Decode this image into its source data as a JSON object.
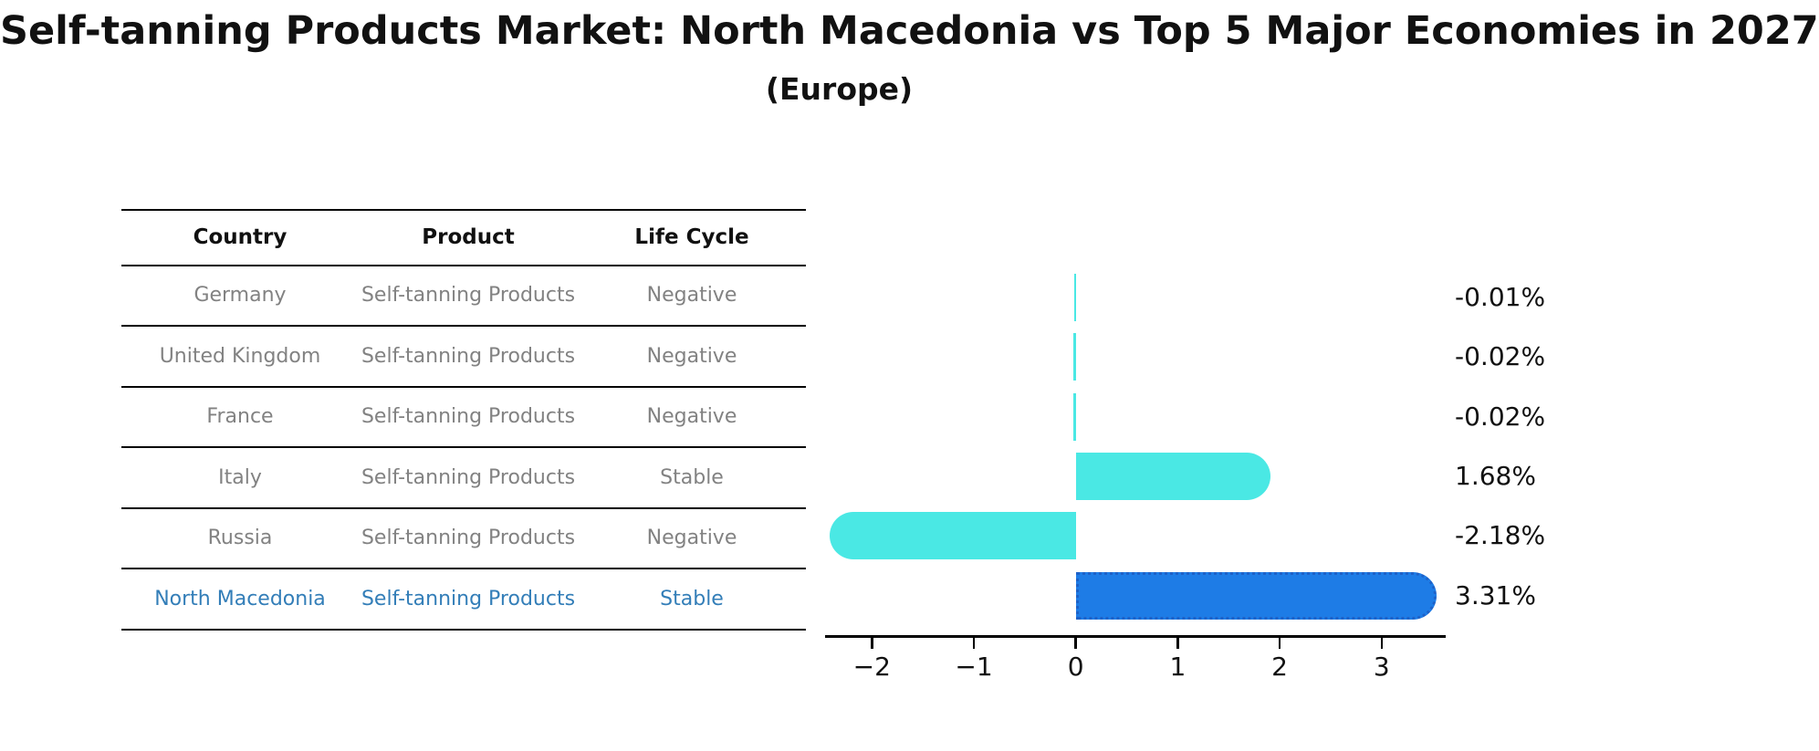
{
  "title": "Self-tanning Products Market: North Macedonia vs Top 5 Major Economies in 2027",
  "subtitle": "(Europe)",
  "table": {
    "headers": [
      "Country",
      "Product",
      "Life Cycle"
    ],
    "rows": [
      {
        "country": "Germany",
        "product": "Self-tanning Products",
        "life_cycle": "Negative"
      },
      {
        "country": "United Kingdom",
        "product": "Self-tanning Products",
        "life_cycle": "Negative"
      },
      {
        "country": "France",
        "product": "Self-tanning Products",
        "life_cycle": "Negative"
      },
      {
        "country": "Italy",
        "product": "Self-tanning Products",
        "life_cycle": "Stable"
      },
      {
        "country": "Russia",
        "product": "Self-tanning Products",
        "life_cycle": "Negative"
      },
      {
        "country": "North Macedonia",
        "product": "Self-tanning Products",
        "life_cycle": "Stable"
      }
    ],
    "highlight_row": 5
  },
  "chart_data": {
    "type": "bar",
    "orientation": "horizontal",
    "title": "Self-tanning Products Market: North Macedonia vs Top 5 Major Economies in 2027 (Europe)",
    "categories": [
      "Germany",
      "United Kingdom",
      "France",
      "Italy",
      "Russia",
      "North Macedonia"
    ],
    "values": [
      -0.01,
      -0.02,
      -0.02,
      1.68,
      -2.18,
      3.31
    ],
    "value_labels": [
      "-0.01%",
      "-0.02%",
      "-0.02%",
      "1.68%",
      "-2.18%",
      "3.31%"
    ],
    "unit": "%",
    "x_ticks": [
      {
        "value": -2,
        "label": "−2"
      },
      {
        "value": -1,
        "label": "−1"
      },
      {
        "value": 0,
        "label": "0"
      },
      {
        "value": 1,
        "label": "1"
      },
      {
        "value": 2,
        "label": "2"
      },
      {
        "value": 3,
        "label": "3"
      }
    ],
    "xlim": [
      -2.46,
      3.63
    ],
    "highlight_index": 5,
    "grid": false,
    "legend": false
  },
  "colors": {
    "bar_default": "#4AE8E4",
    "bar_highlight": "#1E7CE6",
    "bar_highlight_border": "#1E62C8",
    "highlight_text": "#337EB8",
    "table_text": "#828282",
    "axis": "#000000"
  }
}
